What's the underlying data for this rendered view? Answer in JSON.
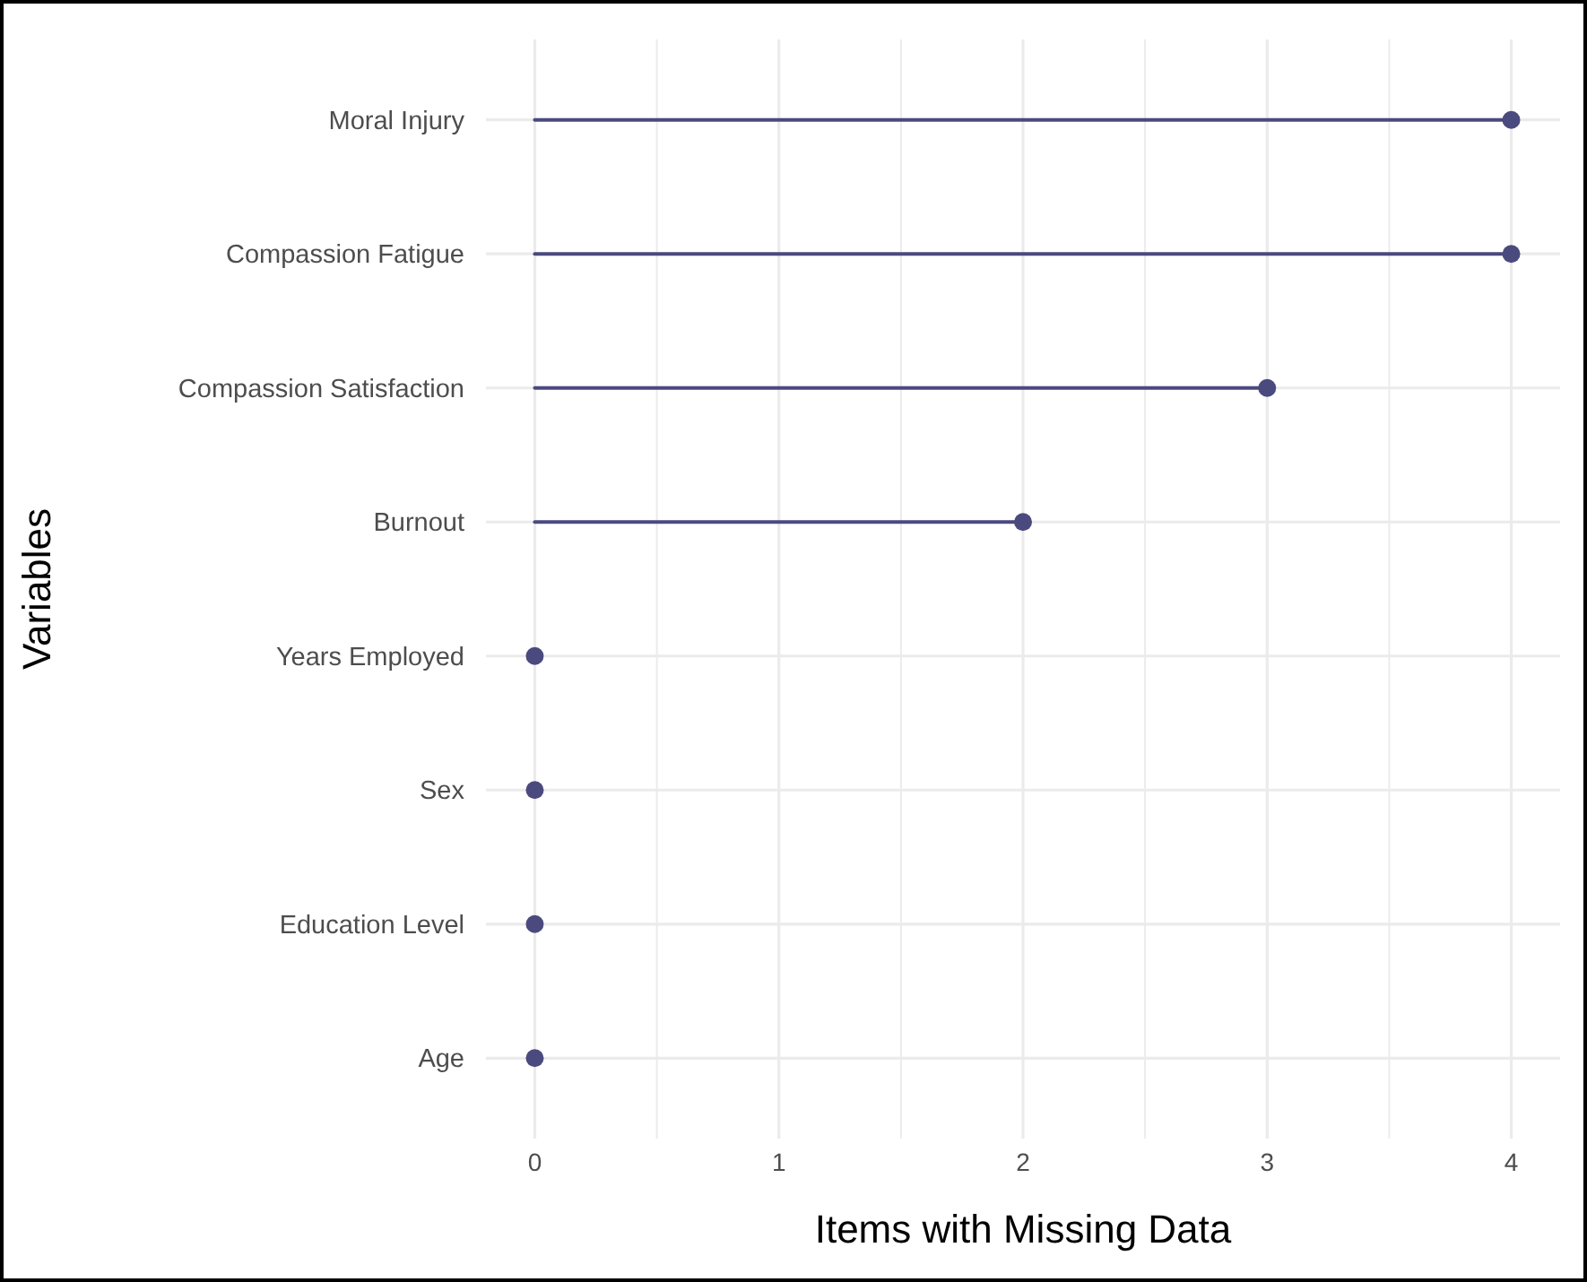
{
  "chart_data": {
    "type": "lollipop",
    "orientation": "horizontal",
    "xlabel": "Items with Missing Data",
    "ylabel": "Variables",
    "categories": [
      "Moral Injury",
      "Compassion Fatigue",
      "Compassion Satisfaction",
      "Burnout",
      "Years Employed",
      "Sex",
      "Education Level",
      "Age"
    ],
    "values": [
      4,
      4,
      3,
      2,
      0,
      0,
      0,
      0
    ],
    "color": "#4b4a7e",
    "xlim": [
      -0.2,
      4.2
    ],
    "xticks": [
      0,
      {
        "value": 0.5,
        "label": null
      },
      1,
      {
        "value": 1.5,
        "label": null
      },
      2,
      {
        "value": 2.5,
        "label": null
      },
      3,
      {
        "value": 3.5,
        "label": null
      },
      4
    ],
    "grid": true,
    "marker": "circle"
  }
}
